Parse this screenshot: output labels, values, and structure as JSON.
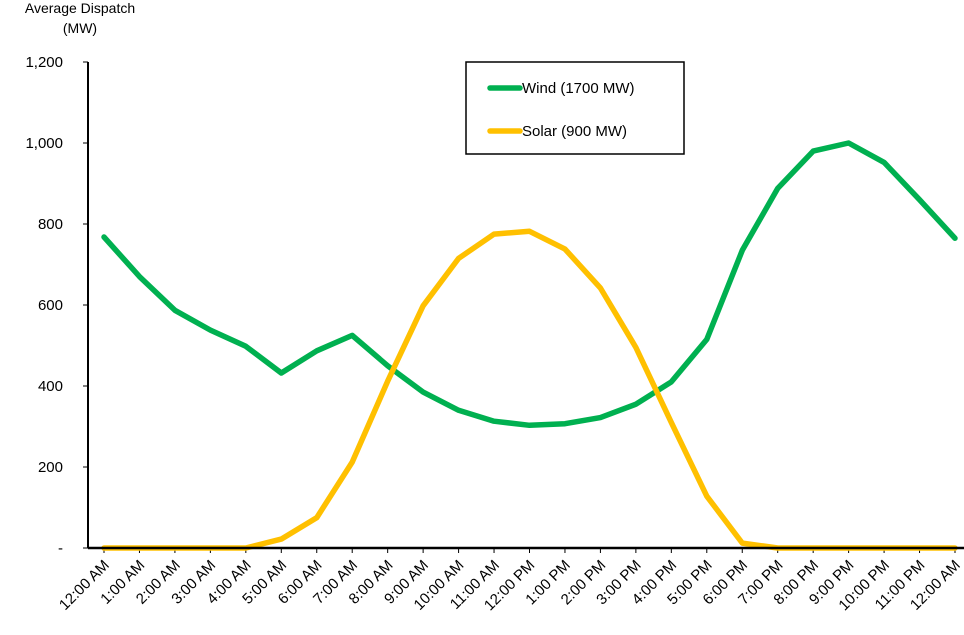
{
  "chart_data": {
    "type": "line",
    "ylabel_line1": "Average Dispatch",
    "ylabel_line2": "(MW)",
    "ylim": [
      0,
      1200
    ],
    "yticks": [
      0,
      200,
      400,
      600,
      800,
      1000,
      1200
    ],
    "ytick_labels": [
      "-",
      "200",
      "400",
      "600",
      "800",
      "1,000",
      "1,200"
    ],
    "grid": false,
    "legend_position": "top-center",
    "categories": [
      "12:00 AM",
      "1:00 AM",
      "2:00 AM",
      "3:00 AM",
      "4:00 AM",
      "5:00 AM",
      "6:00 AM",
      "7:00 AM",
      "8:00 AM",
      "9:00 AM",
      "10:00 AM",
      "11:00 AM",
      "12:00 PM",
      "1:00 PM",
      "2:00 PM",
      "3:00 PM",
      "4:00 PM",
      "5:00 PM",
      "6:00 PM",
      "7:00 PM",
      "8:00 PM",
      "9:00 PM",
      "10:00 PM",
      "11:00 PM",
      "12:00 AM"
    ],
    "series": [
      {
        "name": "Wind (1700 MW)",
        "color": "#00B050",
        "values": [
          768,
          670,
          587,
          538,
          498,
          432,
          487,
          525,
          450,
          385,
          340,
          313,
          303,
          307,
          322,
          355,
          410,
          515,
          735,
          888,
          980,
          1000,
          952,
          860,
          765
        ]
      },
      {
        "name": "Solar (900 MW)",
        "color": "#FFC000",
        "values": [
          0,
          0,
          0,
          0,
          0,
          22,
          75,
          212,
          412,
          598,
          715,
          775,
          782,
          738,
          642,
          495,
          310,
          128,
          12,
          0,
          0,
          0,
          0,
          0,
          0
        ]
      }
    ]
  }
}
